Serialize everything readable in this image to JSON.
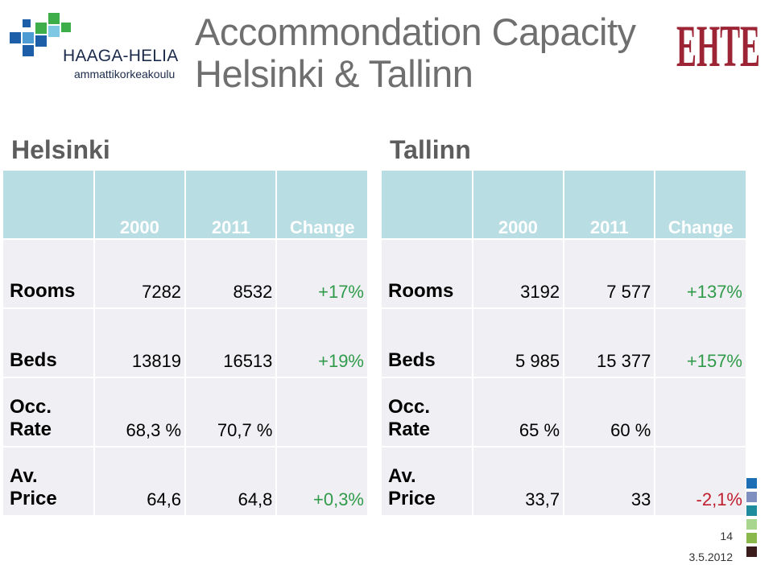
{
  "logo": {
    "name": "HAAGA-HELIA",
    "subtitle": "ammattikorkeakoulu",
    "colors": [
      "#1c5fa8",
      "#4c9bd2",
      "#3dae49",
      "#7ec8e3"
    ],
    "ehte_text": "EHTE",
    "ehte_color": "#9c2434"
  },
  "title": {
    "line1": "Accommondation Capacity",
    "line2": "Helsinki & Tallinn"
  },
  "helsinki": {
    "heading": "Helsinki",
    "columns": [
      "2000",
      "2011",
      "Change"
    ],
    "rows": [
      {
        "label": "Rooms",
        "v2000": "7282",
        "v2011": "8532",
        "change": "+17%"
      },
      {
        "label": "Beds",
        "v2000": "13819",
        "v2011": "16513",
        "change": "+19%"
      },
      {
        "label": "Occ. Rate",
        "v2000": "68,3 %",
        "v2011": "70,7 %",
        "change": ""
      },
      {
        "label": "Av. Price",
        "v2000": "64,6",
        "v2011": "64,8",
        "change": "+0,3%"
      }
    ]
  },
  "tallinn": {
    "heading": "Tallinn",
    "columns": [
      "2000",
      "2011",
      "Change"
    ],
    "rows": [
      {
        "label": "Rooms",
        "v2000": "3192",
        "v2011": "7 577",
        "change": "+137%"
      },
      {
        "label": "Beds",
        "v2000": "5 985",
        "v2011": "15 377",
        "change": "+157%"
      },
      {
        "label": "Occ. Rate",
        "v2000": "65 %",
        "v2011": "60 %",
        "change": ""
      },
      {
        "label": "Av. Price",
        "v2000": "33,7",
        "v2011": "33",
        "change": "-2,1%"
      }
    ]
  },
  "footer": {
    "page_number": "14",
    "date": "3.5.2012",
    "bullet_colors": [
      "#1c6fb5",
      "#7f8fc0",
      "#1f8c9e",
      "#a9d68e",
      "#8ab84a",
      "#3a1c1c"
    ]
  }
}
